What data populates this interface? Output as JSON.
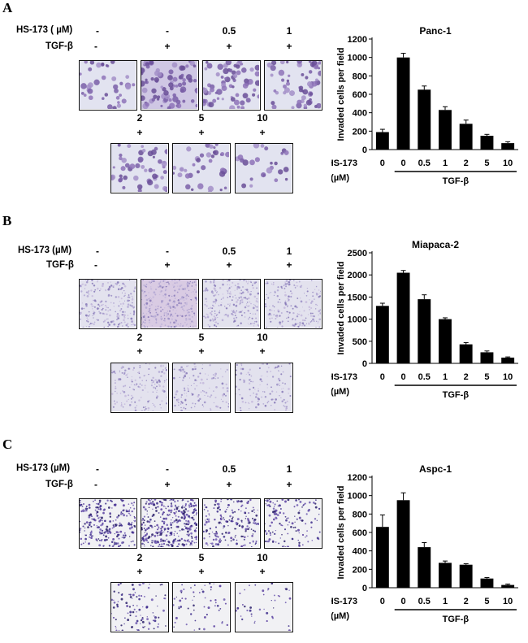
{
  "figure": {
    "panels": [
      {
        "letter": "A",
        "treatment_labels": {
          "hs": "HS-173 ( µM)",
          "tgf": "TGF-β"
        },
        "row1": {
          "hs": [
            "-",
            "-",
            "0.5",
            "1"
          ],
          "tgf": [
            "-",
            "+",
            "+",
            "+"
          ]
        },
        "row2": {
          "hs": [
            "2",
            "5",
            "10"
          ],
          "tgf": [
            "+",
            "+",
            "+"
          ]
        },
        "micrograph_style": "large-cells",
        "micrograph_densities": [
          0.35,
          1.0,
          0.8,
          0.7,
          0.55,
          0.35,
          0.2
        ]
      },
      {
        "letter": "B",
        "treatment_labels": {
          "hs": "HS-173 (µM)",
          "tgf": "TGF-β"
        },
        "row1": {
          "hs": [
            "-",
            "-",
            "0.5",
            "1"
          ],
          "tgf": [
            "-",
            "+",
            "+",
            "+"
          ]
        },
        "row2": {
          "hs": [
            "2",
            "5",
            "10"
          ],
          "tgf": [
            "+",
            "+",
            "+"
          ]
        },
        "micrograph_style": "dense-small",
        "micrograph_densities": [
          0.65,
          1.0,
          0.7,
          0.5,
          0.35,
          0.25,
          0.2
        ]
      },
      {
        "letter": "C",
        "treatment_labels": {
          "hs": "HS-173  (µM)",
          "tgf": "TGF-β"
        },
        "row1": {
          "hs": [
            "-",
            "-",
            "0.5",
            "1"
          ],
          "tgf": [
            "-",
            "+",
            "+",
            "+"
          ]
        },
        "row2": {
          "hs": [
            "2",
            "5",
            "10"
          ],
          "tgf": [
            "+",
            "+",
            "+"
          ]
        },
        "micrograph_style": "dark-dots",
        "micrograph_densities": [
          0.7,
          1.0,
          0.5,
          0.35,
          0.25,
          0.12,
          0.07
        ]
      }
    ]
  },
  "chart_data": [
    {
      "type": "bar",
      "title": "Panc-1",
      "ylabel": "Invaded cells per field",
      "ylim": [
        0,
        1200
      ],
      "yticks": [
        0,
        200,
        400,
        600,
        800,
        1000,
        1200
      ],
      "x_row_label": "HS-173",
      "x_unit_label": "(µM)",
      "categories": [
        "0",
        "0",
        "0.5",
        "1",
        "2",
        "5",
        "10"
      ],
      "group_label": "TGF-β",
      "values": [
        190,
        1000,
        650,
        430,
        280,
        150,
        70
      ],
      "errors": [
        30,
        45,
        40,
        35,
        40,
        15,
        15
      ]
    },
    {
      "type": "bar",
      "title": "Miapaca-2",
      "ylabel": "Invaded cells per field",
      "ylim": [
        0,
        2500
      ],
      "yticks": [
        0,
        500,
        1000,
        1500,
        2000,
        2500
      ],
      "x_row_label": "HS-173",
      "x_unit_label": "(µM)",
      "categories": [
        "0",
        "0",
        "0.5",
        "1",
        "2",
        "5",
        "10"
      ],
      "group_label": "TGF-β",
      "values": [
        1300,
        2050,
        1450,
        1000,
        430,
        250,
        130
      ],
      "errors": [
        60,
        50,
        100,
        30,
        40,
        30,
        15
      ]
    },
    {
      "type": "bar",
      "title": "Aspc-1",
      "ylabel": "Invaded cells per field",
      "ylim": [
        0,
        1200
      ],
      "yticks": [
        0,
        200,
        400,
        600,
        800,
        1000,
        1200
      ],
      "x_row_label": "HS-173",
      "x_unit_label": "(µM)",
      "categories": [
        "0",
        "0",
        "0.5",
        "1",
        "2",
        "5",
        "10"
      ],
      "group_label": "TGF-β",
      "values": [
        660,
        950,
        440,
        270,
        250,
        100,
        30
      ],
      "errors": [
        130,
        80,
        50,
        20,
        10,
        10,
        10
      ]
    }
  ]
}
